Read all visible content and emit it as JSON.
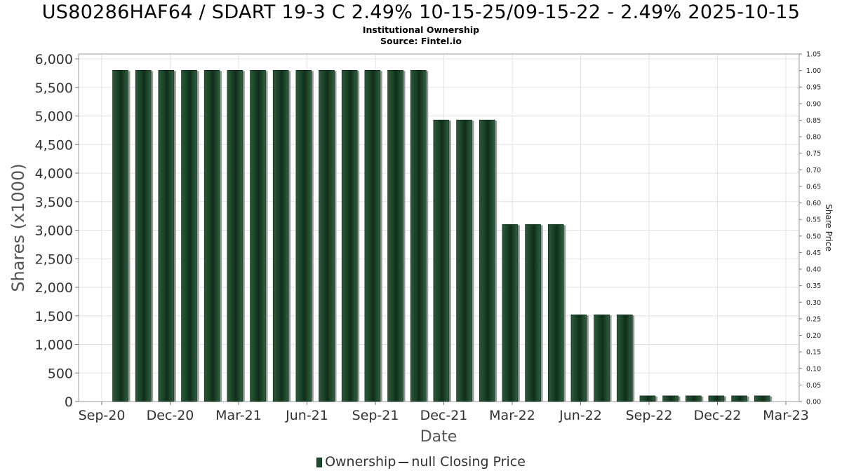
{
  "chart_data": {
    "type": "bar",
    "title": "US80286HAF64 / SDART 19-3 C 2.49% 10-15-25/09-15-22 - 2.49% 2025-10-15",
    "subtitle": "Institutional Ownership",
    "source": "Source: Fintel.io",
    "xlabel": "Date",
    "ylabel": "Shares (x1000)",
    "y2label": "Share Price",
    "ylim": [
      0,
      6000
    ],
    "y2lim": [
      0,
      1.05
    ],
    "yticks": [
      "0",
      "500",
      "1,000",
      "1,500",
      "2,000",
      "2,500",
      "3,000",
      "3,500",
      "4,000",
      "4,500",
      "5,000",
      "5,500",
      "6,000"
    ],
    "y2ticks": [
      "0.00",
      "0.05",
      "0.10",
      "0.15",
      "0.20",
      "0.25",
      "0.30",
      "0.35",
      "0.40",
      "0.45",
      "0.50",
      "0.55",
      "0.60",
      "0.65",
      "0.70",
      "0.75",
      "0.80",
      "0.85",
      "0.90",
      "0.95",
      "1.00",
      "1.05"
    ],
    "xticks": [
      "Sep-20",
      "Dec-20",
      "Mar-21",
      "Jun-21",
      "Sep-21",
      "Dec-21",
      "Mar-22",
      "Jun-22",
      "Sep-22",
      "Dec-22",
      "Mar-23"
    ],
    "grid": true,
    "legend_position": "bottom-center",
    "series": [
      {
        "name": "Ownership",
        "color": "#1f4a2e",
        "values": [
          5800,
          5800,
          5800,
          5800,
          5800,
          5800,
          5800,
          5800,
          5800,
          5800,
          5800,
          5800,
          5800,
          5800,
          4930,
          4930,
          4930,
          3100,
          3100,
          3100,
          1520,
          1520,
          1520,
          100,
          100,
          100,
          100,
          100,
          100
        ]
      }
    ],
    "legend": [
      "Ownership",
      "null Closing Price"
    ]
  }
}
